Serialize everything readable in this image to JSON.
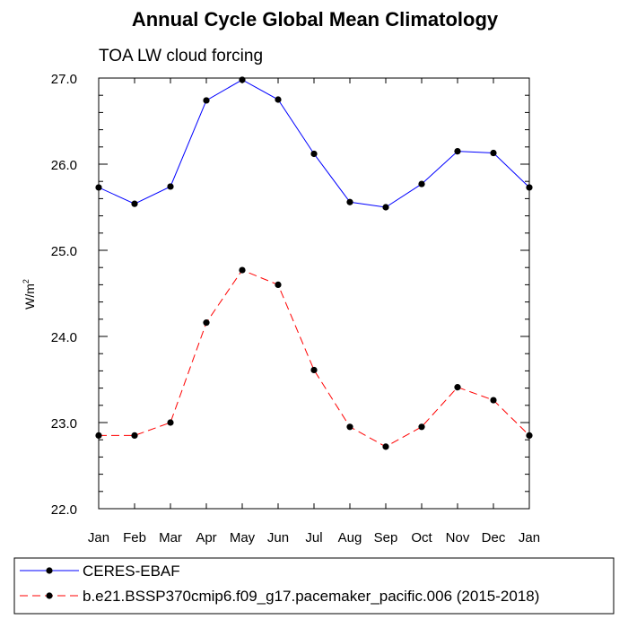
{
  "chart_data": {
    "type": "line",
    "title": "Annual Cycle Global Mean Climatology",
    "subtitle": "TOA LW cloud forcing",
    "ylabel": "W/m",
    "ylabel_superscript": "2",
    "categories": [
      "Jan",
      "Feb",
      "Mar",
      "Apr",
      "May",
      "Jun",
      "Jul",
      "Aug",
      "Sep",
      "Oct",
      "Nov",
      "Dec",
      "Jan"
    ],
    "ylim": [
      22.0,
      27.0
    ],
    "yticks": [
      "22.0",
      "23.0",
      "24.0",
      "25.0",
      "26.0",
      "27.0"
    ],
    "grid": false,
    "legend_position": "bottom",
    "series": [
      {
        "name": "CERES-EBAF",
        "color": "#0000ff",
        "line_style": "solid",
        "marker": "filled-circle",
        "values": [
          25.73,
          25.54,
          25.74,
          26.74,
          26.98,
          26.75,
          26.12,
          25.56,
          25.5,
          25.77,
          26.15,
          26.13,
          25.73
        ]
      },
      {
        "name": "b.e21.BSSP370cmip6.f09_g17.pacemaker_pacific.006 (2015-2018)",
        "color": "#ff0000",
        "line_style": "dashed",
        "marker": "filled-circle",
        "values": [
          22.85,
          22.85,
          23.0,
          24.16,
          24.77,
          24.6,
          23.61,
          22.95,
          22.72,
          22.95,
          23.41,
          23.26,
          22.85
        ]
      }
    ]
  }
}
